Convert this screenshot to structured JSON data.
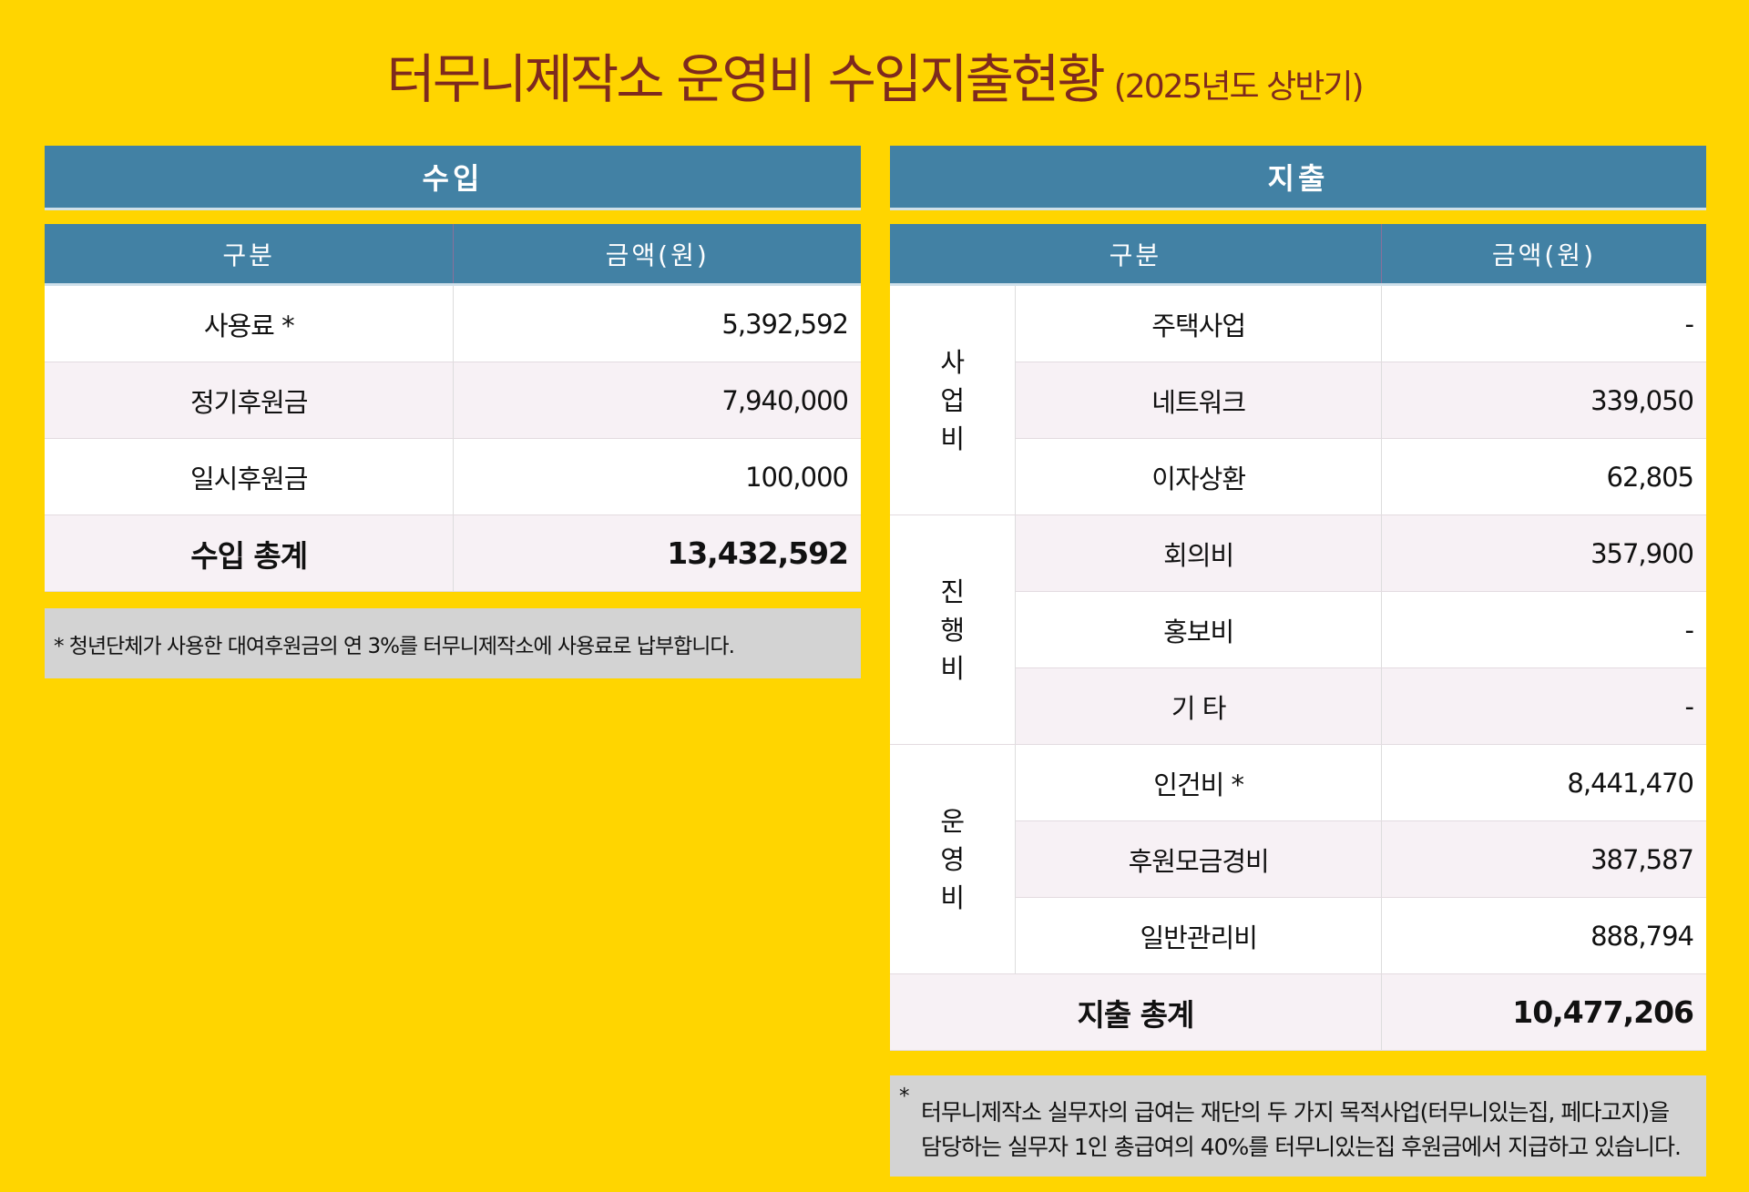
{
  "title": {
    "main": "터무니제작소 운영비 수입지출현황",
    "sub": "(2025년도 상반기)"
  },
  "colors": {
    "background": "#FFD500",
    "header": "#4281A4",
    "title": "#7E2A1E",
    "note_bg": "#D3D3D3"
  },
  "income": {
    "heading": "수입",
    "columns": [
      "구분",
      "금액(원)"
    ],
    "rows": [
      {
        "label": "사용료 *",
        "amount": "5,392,592"
      },
      {
        "label": "정기후원금",
        "amount": "7,940,000"
      },
      {
        "label": "일시후원금",
        "amount": "100,000"
      }
    ],
    "total": {
      "label": "수입 총계",
      "amount": "13,432,592"
    },
    "note": "* 청년단체가 사용한 대여후원금의 연 3%를 터무니제작소에 사용료로 납부합니다."
  },
  "expense": {
    "heading": "지출",
    "columns": [
      "구분",
      "금액(원)"
    ],
    "groups": [
      {
        "category": "사업비",
        "items": [
          {
            "label": "주택사업",
            "amount": "-"
          },
          {
            "label": "네트워크",
            "amount": "339,050"
          },
          {
            "label": "이자상환",
            "amount": "62,805"
          }
        ]
      },
      {
        "category": "진행비",
        "items": [
          {
            "label": "회의비",
            "amount": "357,900"
          },
          {
            "label": "홍보비",
            "amount": "-"
          },
          {
            "label": "기 타",
            "amount": "-"
          }
        ]
      },
      {
        "category": "운영비",
        "items": [
          {
            "label": "인건비 *",
            "amount": "8,441,470"
          },
          {
            "label": "후원모금경비",
            "amount": "387,587"
          },
          {
            "label": "일반관리비",
            "amount": "888,794"
          }
        ]
      }
    ],
    "total": {
      "label": "지출 총계",
      "amount": "10,477,206"
    },
    "note": {
      "star": "*",
      "line1": "터무니제작소 실무자의 급여는 재단의 두 가지 목적사업(터무니있는집, 페다고지)을",
      "line2": "담당하는 실무자 1인 총급여의 40%를 터무니있는집 후원금에서 지급하고 있습니다."
    }
  }
}
